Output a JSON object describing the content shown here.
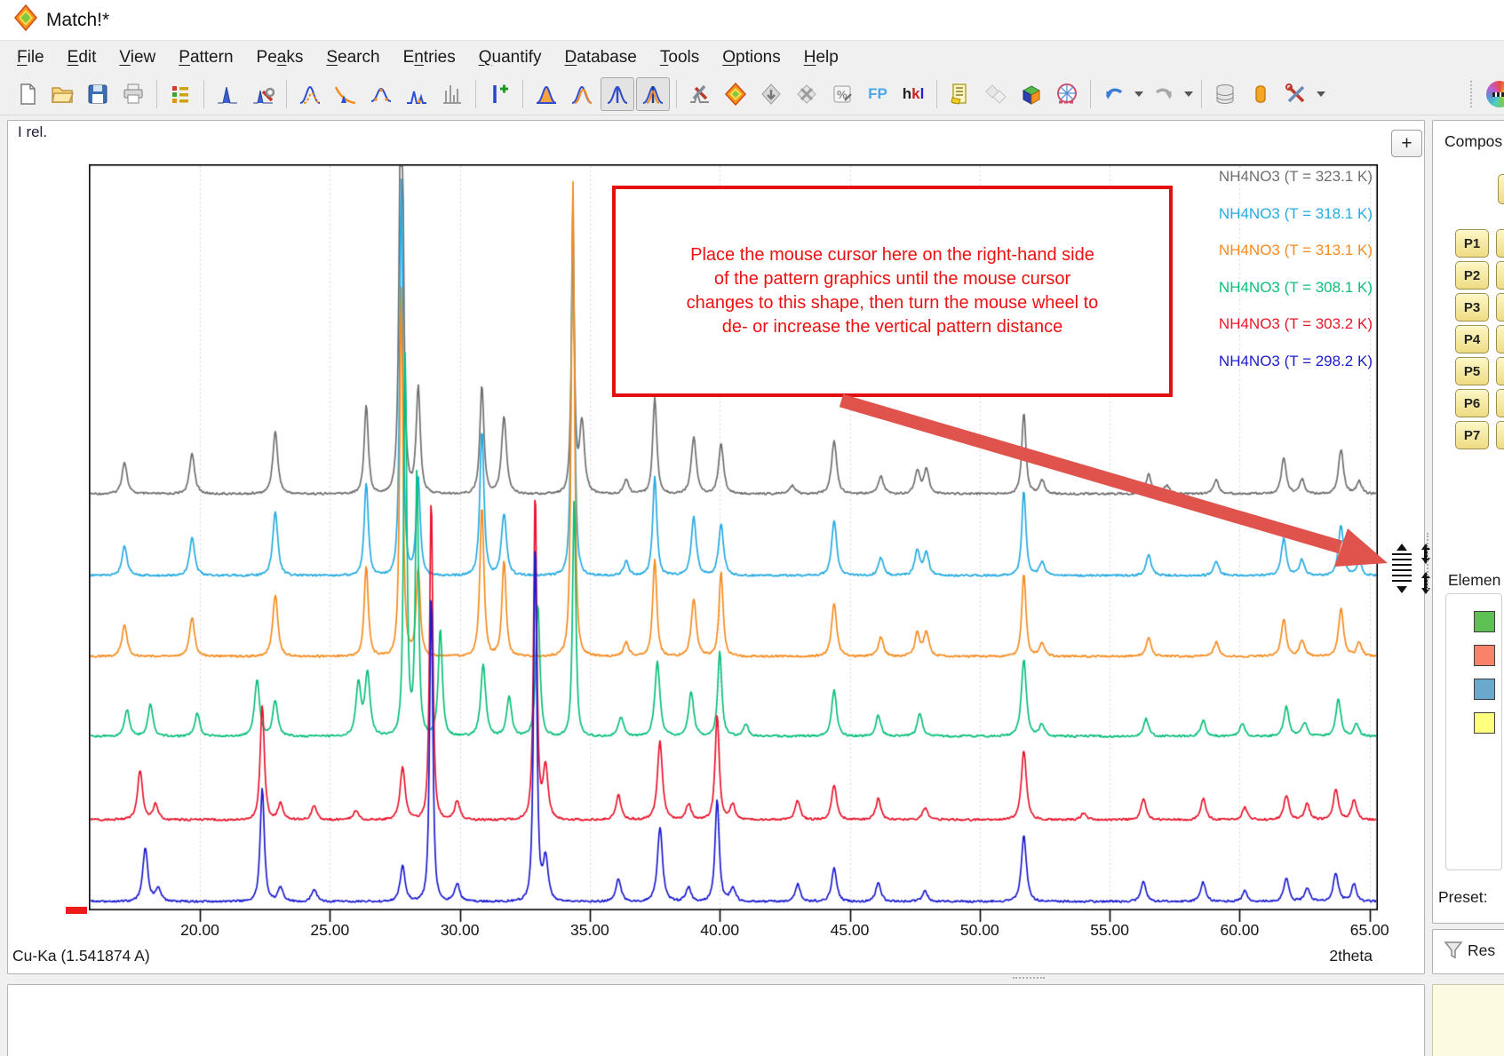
{
  "window": {
    "title": "Match!*"
  },
  "menu": {
    "items": [
      {
        "label": "File",
        "m": 0
      },
      {
        "label": "Edit",
        "m": 0
      },
      {
        "label": "View",
        "m": 0
      },
      {
        "label": "Pattern",
        "m": 0
      },
      {
        "label": "Peaks",
        "m": 2
      },
      {
        "label": "Search",
        "m": 0
      },
      {
        "label": "Entries",
        "m": 1
      },
      {
        "label": "Quantify",
        "m": 0
      },
      {
        "label": "Database",
        "m": 0
      },
      {
        "label": "Tools",
        "m": 0
      },
      {
        "label": "Options",
        "m": 0
      },
      {
        "label": "Help",
        "m": 0
      }
    ]
  },
  "toolbar": {
    "fp_label": "FP",
    "hkl_label": "hkl",
    "pressed": [
      "pattern-zoom-a",
      "pattern-zoom-b"
    ],
    "groups": [
      {
        "items": [
          "new-file",
          "open-folder",
          "save",
          "print"
        ]
      },
      {
        "items": [
          "entry-list"
        ]
      },
      {
        "items": [
          "peak-search",
          "peak-toolbox"
        ]
      },
      {
        "items": [
          "profile-fit",
          "background-subtraction",
          "smoothing",
          "alpha2-stripping",
          "raw-data-bars"
        ]
      },
      {
        "items": [
          "add-peak"
        ]
      },
      {
        "items": [
          "pattern-filled",
          "patterns-overlay",
          "pattern-zoom-a",
          "pattern-zoom-b"
        ]
      },
      {
        "items": [
          "search-match-settings",
          "search-match",
          "entry-demote",
          "entry-delete",
          "quantify",
          "fp-label",
          "hkl-label"
        ]
      },
      {
        "items": [
          "report",
          "diamonds-faded",
          "unit-cell",
          "crystal-structure"
        ]
      },
      {
        "items": [
          "undo",
          "undo-caret",
          "redo",
          "redo-caret"
        ]
      },
      {
        "items": [
          "database",
          "reference-pattern-db",
          "tools-settings",
          "tools-caret"
        ]
      },
      {
        "items": [
          "toolbar-grip",
          "color-wheel"
        ],
        "push_right": true
      }
    ]
  },
  "chart": {
    "y_axis_label": "I rel.",
    "x_axis_label": "2theta",
    "radiation_label": "Cu-Ka (1.541874 A)",
    "zoom_button_label": "+",
    "x_ticks": [
      "20.00",
      "25.00",
      "30.00",
      "35.00",
      "40.00",
      "45.00",
      "50.00",
      "55.00",
      "60.00",
      "65.00"
    ]
  },
  "chart_data": {
    "type": "line",
    "title": "",
    "xlabel": "2theta",
    "ylabel": "I rel.",
    "x_range": [
      15.73,
      65.33
    ],
    "grid": "vertical-dotted",
    "legend_position": "top-right",
    "series": [
      {
        "name": "NH4NO3 (T = 323.1 K)",
        "color": "#6f6f6f",
        "baseline": 556,
        "peaks": [
          [
            17.1,
            36
          ],
          [
            19.7,
            46
          ],
          [
            22.9,
            70
          ],
          [
            26.4,
            100
          ],
          [
            27.75,
            700
          ],
          [
            28.4,
            120
          ],
          [
            30.85,
            122
          ],
          [
            31.7,
            86
          ],
          [
            34.35,
            268
          ],
          [
            34.7,
            80
          ],
          [
            36.4,
            16
          ],
          [
            37.5,
            108
          ],
          [
            39.0,
            64
          ],
          [
            40.05,
            56
          ],
          [
            42.8,
            10
          ],
          [
            44.4,
            60
          ],
          [
            46.2,
            20
          ],
          [
            47.6,
            26
          ],
          [
            47.95,
            28
          ],
          [
            51.7,
            92
          ],
          [
            52.4,
            16
          ],
          [
            56.5,
            22
          ],
          [
            57.2,
            10
          ],
          [
            59.1,
            16
          ],
          [
            61.7,
            40
          ],
          [
            62.4,
            16
          ],
          [
            63.9,
            50
          ],
          [
            64.6,
            14
          ]
        ]
      },
      {
        "name": "NH4NO3 (T = 318.1 K)",
        "color": "#25aae1",
        "baseline": 648,
        "peaks": [
          [
            17.1,
            34
          ],
          [
            19.7,
            44
          ],
          [
            22.9,
            72
          ],
          [
            26.4,
            104
          ],
          [
            27.75,
            452
          ],
          [
            28.4,
            110
          ],
          [
            30.85,
            165
          ],
          [
            31.7,
            70
          ],
          [
            34.35,
            428
          ],
          [
            36.4,
            16
          ],
          [
            37.5,
            112
          ],
          [
            39.0,
            66
          ],
          [
            40.05,
            58
          ],
          [
            44.4,
            62
          ],
          [
            46.2,
            20
          ],
          [
            47.6,
            28
          ],
          [
            47.95,
            26
          ],
          [
            51.7,
            96
          ],
          [
            52.4,
            16
          ],
          [
            56.5,
            24
          ],
          [
            59.1,
            16
          ],
          [
            61.7,
            42
          ],
          [
            62.4,
            18
          ],
          [
            63.9,
            56
          ],
          [
            64.6,
            16
          ]
        ]
      },
      {
        "name": "NH4NO3 (T = 313.1 K)",
        "color": "#f68b1e",
        "baseline": 739,
        "peaks": [
          [
            17.1,
            36
          ],
          [
            19.7,
            44
          ],
          [
            22.9,
            70
          ],
          [
            26.4,
            102
          ],
          [
            27.75,
            420
          ],
          [
            28.4,
            100
          ],
          [
            30.85,
            170
          ],
          [
            31.7,
            108
          ],
          [
            34.35,
            536
          ],
          [
            36.4,
            16
          ],
          [
            37.5,
            110
          ],
          [
            39.0,
            64
          ],
          [
            40.05,
            96
          ],
          [
            44.4,
            60
          ],
          [
            46.2,
            22
          ],
          [
            47.6,
            26
          ],
          [
            47.95,
            28
          ],
          [
            51.7,
            94
          ],
          [
            52.4,
            16
          ],
          [
            56.5,
            22
          ],
          [
            59.1,
            16
          ],
          [
            61.7,
            42
          ],
          [
            62.4,
            18
          ],
          [
            63.9,
            54
          ],
          [
            64.6,
            16
          ]
        ]
      },
      {
        "name": "NH4NO3 (T = 308.1 K)",
        "color": "#0abf7a",
        "baseline": 829,
        "peaks": [
          [
            17.2,
            30
          ],
          [
            18.1,
            36
          ],
          [
            19.9,
            26
          ],
          [
            22.2,
            64
          ],
          [
            22.9,
            40
          ],
          [
            26.1,
            60
          ],
          [
            26.45,
            70
          ],
          [
            27.9,
            430
          ],
          [
            28.35,
            300
          ],
          [
            29.25,
            120
          ],
          [
            30.9,
            80
          ],
          [
            31.9,
            44
          ],
          [
            33.0,
            150
          ],
          [
            34.4,
            272
          ],
          [
            36.2,
            22
          ],
          [
            37.6,
            84
          ],
          [
            38.9,
            50
          ],
          [
            40.0,
            96
          ],
          [
            41.0,
            14
          ],
          [
            44.4,
            52
          ],
          [
            46.1,
            24
          ],
          [
            47.7,
            26
          ],
          [
            51.7,
            86
          ],
          [
            52.4,
            14
          ],
          [
            56.4,
            20
          ],
          [
            58.6,
            18
          ],
          [
            60.1,
            14
          ],
          [
            61.8,
            34
          ],
          [
            62.5,
            16
          ],
          [
            63.8,
            42
          ],
          [
            64.5,
            14
          ]
        ]
      },
      {
        "name": "NH4NO3 (T = 303.2 K)",
        "color": "#e9152c",
        "baseline": 923,
        "peaks": [
          [
            17.7,
            56
          ],
          [
            18.3,
            18
          ],
          [
            22.4,
            130
          ],
          [
            23.1,
            18
          ],
          [
            24.4,
            16
          ],
          [
            26.0,
            10
          ],
          [
            27.8,
            60
          ],
          [
            28.9,
            366
          ],
          [
            29.9,
            22
          ],
          [
            32.9,
            372
          ],
          [
            33.3,
            60
          ],
          [
            36.1,
            28
          ],
          [
            37.7,
            88
          ],
          [
            38.8,
            18
          ],
          [
            39.9,
            118
          ],
          [
            40.5,
            18
          ],
          [
            43.0,
            22
          ],
          [
            44.4,
            40
          ],
          [
            46.1,
            24
          ],
          [
            47.9,
            14
          ],
          [
            51.7,
            78
          ],
          [
            54.0,
            8
          ],
          [
            56.3,
            24
          ],
          [
            58.6,
            24
          ],
          [
            60.2,
            14
          ],
          [
            61.8,
            28
          ],
          [
            62.6,
            18
          ],
          [
            63.7,
            34
          ],
          [
            64.4,
            22
          ]
        ]
      },
      {
        "name": "NH4NO3 (T = 298.2 K)",
        "color": "#1c1ccf",
        "baseline": 1015,
        "peaks": [
          [
            17.9,
            60
          ],
          [
            18.4,
            16
          ],
          [
            22.4,
            128
          ],
          [
            23.1,
            16
          ],
          [
            24.4,
            14
          ],
          [
            27.8,
            40
          ],
          [
            28.9,
            350
          ],
          [
            29.9,
            20
          ],
          [
            32.9,
            408
          ],
          [
            33.3,
            50
          ],
          [
            36.1,
            26
          ],
          [
            37.7,
            84
          ],
          [
            38.8,
            16
          ],
          [
            39.9,
            116
          ],
          [
            40.5,
            16
          ],
          [
            43.0,
            20
          ],
          [
            44.4,
            38
          ],
          [
            46.1,
            22
          ],
          [
            47.9,
            12
          ],
          [
            51.7,
            74
          ],
          [
            56.3,
            22
          ],
          [
            58.6,
            22
          ],
          [
            60.2,
            12
          ],
          [
            61.8,
            26
          ],
          [
            62.6,
            16
          ],
          [
            63.7,
            32
          ],
          [
            64.4,
            20
          ]
        ]
      }
    ]
  },
  "annotation": {
    "lines": [
      "Place the mouse cursor here on the right-hand side",
      "of the pattern graphics until the mouse cursor",
      "changes to this shape, then turn the mouse wheel to",
      "de- or increase the vertical pattern distance"
    ],
    "border_color": "#e40f0f",
    "text_color": "#ee1111",
    "arrow_color": "#e0534c"
  },
  "sidebar": {
    "composition_title": "Compos",
    "phase_buttons": [
      "P1",
      "P2",
      "P3",
      "P4",
      "P5",
      "P6",
      "P7"
    ],
    "elements_title": "Elemen",
    "element_swatches": [
      "#5cc152",
      "#f8836a",
      "#6aa9cc",
      "#ffff7e"
    ],
    "preset_label": "Preset:",
    "results_label": "Res"
  }
}
